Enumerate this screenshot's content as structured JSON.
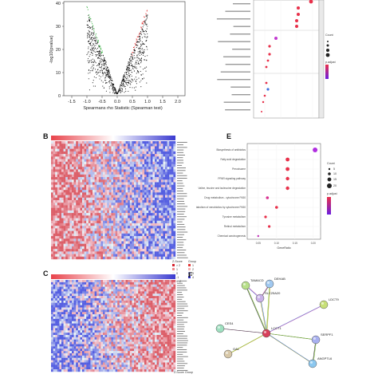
{
  "panels": {
    "b": "B",
    "c": "C",
    "e": "E",
    "f": "F"
  },
  "volcano": {
    "xlabel": "Spearmans rho Statistic (Spearman test)",
    "ylabel": "-log10(pvalue)",
    "y_ticks": [
      "40",
      "30",
      "20",
      "10",
      "0"
    ],
    "x_ticks": [
      "-1.5",
      "-1.0",
      "-0.5",
      "0.0",
      "0.5",
      "1.0",
      "1.5",
      "2.0"
    ]
  },
  "heatmap_b": {
    "legend": {
      "zscore_title": "Z-Score",
      "group_title": "Group",
      "zscore": [
        "> 2",
        "1",
        "0",
        "-1",
        "< -2"
      ],
      "groups": [
        "1",
        "2",
        "3",
        "4"
      ]
    }
  },
  "heatmap_c": {
    "legend": {
      "zscore_title": "Z-Score",
      "group_title": "Group"
    }
  },
  "dotplot_e": {
    "xlabel": "GeneRatio",
    "x_ticks": [
      "0.05",
      "0.10",
      "0.15",
      "0.20"
    ],
    "terms": [
      "Biosynthesis of antibiotics",
      "Fatty acid degradation",
      "Peroxisome",
      "PPAR signaling pathway",
      "Valine, leucine and isoleucine degradation",
      "Drug metabolism - cytochrome P450",
      "Metabolism of xenobiotics by cytochrome P450",
      "Tyrosine metabolism",
      "Retinol metabolism",
      "Chemical carcinogenesis"
    ],
    "legend": {
      "count_title": "Count",
      "counts": [
        "5",
        "10",
        "15",
        "20"
      ],
      "padj_title": "p.adjust"
    },
    "colors": {
      "high": "#e8304a",
      "low": "#6a1de0"
    }
  },
  "dotplot_top": {
    "legend": {
      "count_title": "Count",
      "padj_title": "p.adjust"
    }
  },
  "network_f": {
    "nodes": [
      {
        "id": "TAMACD",
        "label": "TAMACD"
      },
      {
        "id": "DEHAB",
        "label": "DEHAB"
      },
      {
        "id": "SLC25A20",
        "label": "SLC25A20"
      },
      {
        "id": "LDCT9",
        "label": "LDCT9"
      },
      {
        "id": "CES4",
        "label": "CES4"
      },
      {
        "id": "LCCT1",
        "label": "LCCT1"
      },
      {
        "id": "SERPF1",
        "label": "SERPF1"
      },
      {
        "id": "GAL",
        "label": "GAL"
      },
      {
        "id": "ANGPTL6",
        "label": "ANGPTL6"
      }
    ]
  }
}
